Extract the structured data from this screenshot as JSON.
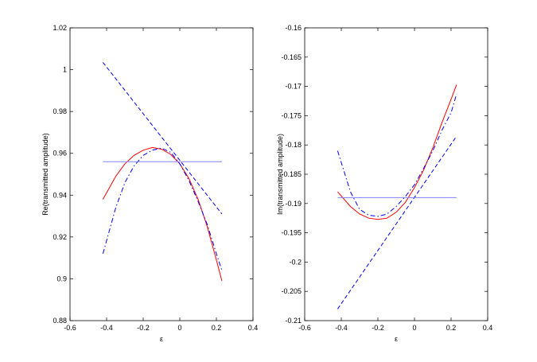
{
  "chart_data": [
    {
      "type": "line",
      "xlabel": "ε",
      "ylabel": "Re(transmitted amplitude)",
      "xlim": [
        -0.6,
        0.4
      ],
      "ylim": [
        0.88,
        1.02
      ],
      "xticks": [
        -0.6,
        -0.4,
        -0.2,
        0,
        0.2,
        0.4
      ],
      "xtick_labels": [
        "-0.6",
        "-0.4",
        "-0.2",
        "0",
        "0.2",
        "0.4"
      ],
      "yticks": [
        0.88,
        0.9,
        0.92,
        0.94,
        0.96,
        0.98,
        1,
        1.02
      ],
      "ytick_labels": [
        "0.88",
        "0.9",
        "0.92",
        "0.94",
        "0.96",
        "0.98",
        "1",
        "1.02"
      ],
      "grid": false,
      "series": [
        {
          "color": "#ff0000",
          "style": "solid",
          "x": [
            -0.42,
            -0.35,
            -0.3,
            -0.25,
            -0.2,
            -0.15,
            -0.1,
            -0.05,
            0,
            0.05,
            0.1,
            0.15,
            0.2,
            0.23
          ],
          "y": [
            0.938,
            0.949,
            0.955,
            0.959,
            0.9615,
            0.9628,
            0.962,
            0.9595,
            0.955,
            0.948,
            0.938,
            0.925,
            0.909,
            0.899
          ]
        },
        {
          "color": "#0000ff",
          "style": "dashdot",
          "x": [
            -0.42,
            -0.35,
            -0.3,
            -0.25,
            -0.2,
            -0.15,
            -0.1,
            -0.05,
            0,
            0.05,
            0.1,
            0.15,
            0.2,
            0.23
          ],
          "y": [
            0.912,
            0.934,
            0.946,
            0.954,
            0.959,
            0.9615,
            0.9625,
            0.9605,
            0.955,
            0.947,
            0.937,
            0.926,
            0.912,
            0.904
          ]
        },
        {
          "color": "#0000ff",
          "style": "dashed",
          "x": [
            -0.42,
            0.23
          ],
          "y": [
            1.0035,
            0.931
          ]
        },
        {
          "color": "#8080ff",
          "style": "solid",
          "x": [
            -0.42,
            0.23
          ],
          "y": [
            0.956,
            0.956
          ]
        }
      ]
    },
    {
      "type": "line",
      "xlabel": "ε",
      "ylabel": "Im(transmitted amplitude)",
      "xlim": [
        -0.6,
        0.4
      ],
      "ylim": [
        -0.21,
        -0.16
      ],
      "xticks": [
        -0.6,
        -0.4,
        -0.2,
        0,
        0.2,
        0.4
      ],
      "xtick_labels": [
        "-0.6",
        "-0.4",
        "-0.2",
        "0",
        "0.2",
        "0.4"
      ],
      "yticks": [
        -0.21,
        -0.205,
        -0.2,
        -0.195,
        -0.19,
        -0.185,
        -0.18,
        -0.175,
        -0.17,
        -0.165,
        -0.16
      ],
      "ytick_labels": [
        "-0.21",
        "-0.205",
        "-0.2",
        "-0.195",
        "-0.19",
        "-0.185",
        "-0.18",
        "-0.175",
        "-0.17",
        "-0.165",
        "-0.16"
      ],
      "grid": false,
      "series": [
        {
          "color": "#ff0000",
          "style": "solid",
          "x": [
            -0.42,
            -0.35,
            -0.3,
            -0.25,
            -0.2,
            -0.15,
            -0.1,
            -0.05,
            0,
            0.05,
            0.1,
            0.15,
            0.2,
            0.23
          ],
          "y": [
            -0.188,
            -0.1905,
            -0.1918,
            -0.1925,
            -0.1927,
            -0.1925,
            -0.1915,
            -0.1898,
            -0.1873,
            -0.1843,
            -0.1805,
            -0.1762,
            -0.1722,
            -0.1697
          ]
        },
        {
          "color": "#0000ff",
          "style": "dashdot",
          "x": [
            -0.42,
            -0.35,
            -0.3,
            -0.25,
            -0.2,
            -0.15,
            -0.1,
            -0.05,
            0,
            0.05,
            0.1,
            0.15,
            0.2,
            0.23
          ],
          "y": [
            -0.181,
            -0.188,
            -0.191,
            -0.192,
            -0.1922,
            -0.1918,
            -0.1905,
            -0.1888,
            -0.1868,
            -0.184,
            -0.181,
            -0.1775,
            -0.1745,
            -0.1713
          ]
        },
        {
          "color": "#0000ff",
          "style": "dashed",
          "x": [
            -0.42,
            0.23
          ],
          "y": [
            -0.208,
            -0.1785
          ]
        },
        {
          "color": "#8080ff",
          "style": "solid",
          "x": [
            -0.42,
            0.23
          ],
          "y": [
            -0.189,
            -0.189
          ]
        }
      ]
    }
  ]
}
